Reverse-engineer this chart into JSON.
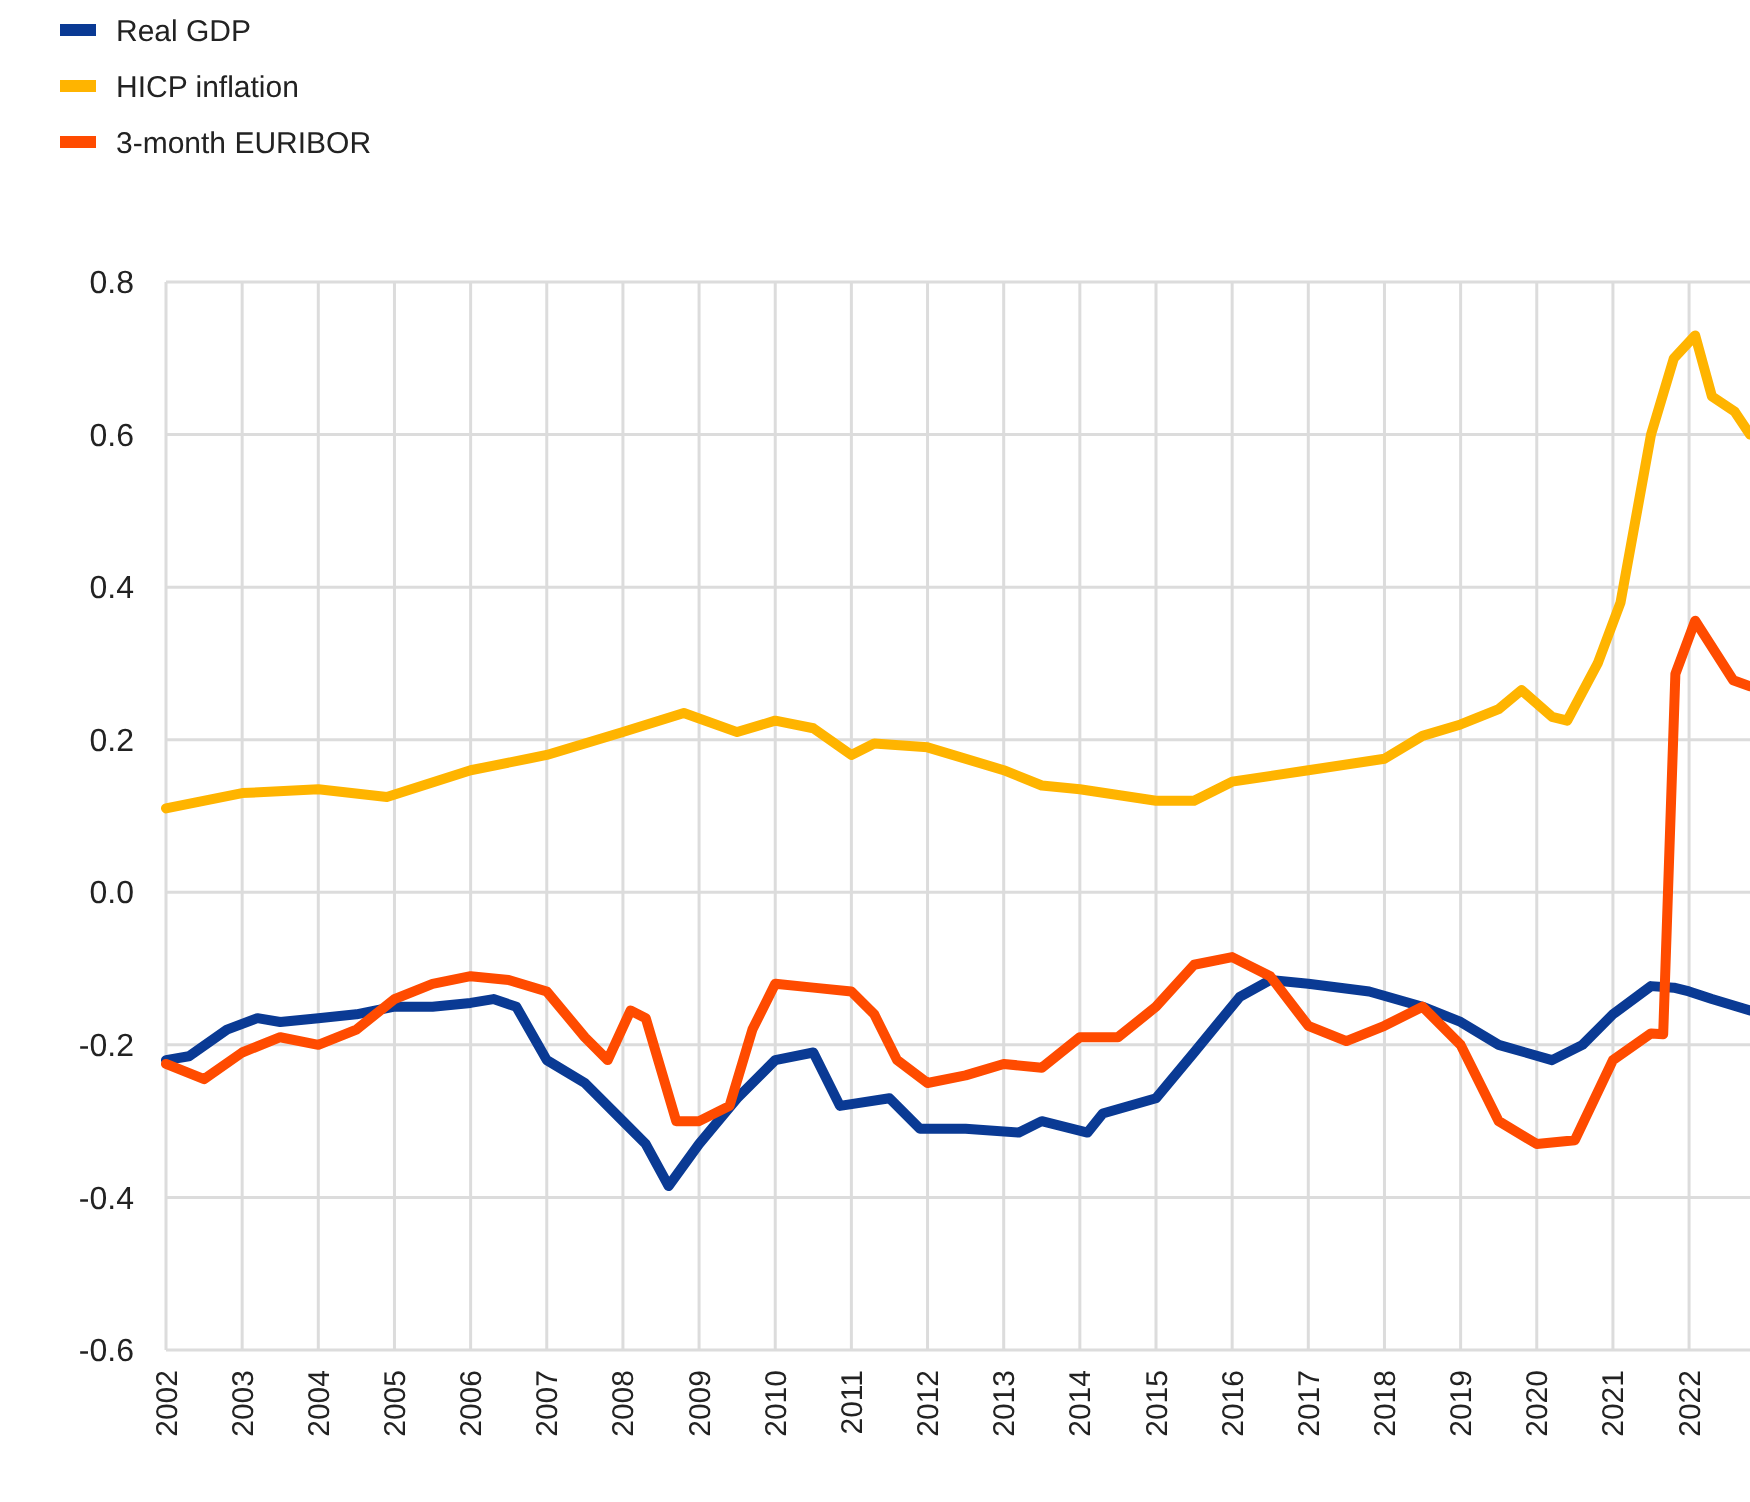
{
  "chart_data": {
    "type": "line",
    "xlim": [
      2002,
      2022.8
    ],
    "xticks": [
      2002,
      2003,
      2004,
      2005,
      2006,
      2007,
      2008,
      2009,
      2010,
      2011,
      2012,
      2013,
      2014,
      2015,
      2016,
      2017,
      2018,
      2019,
      2020,
      2021,
      2022
    ],
    "ylim": [
      -0.6,
      0.8
    ],
    "yticks": [
      {
        "value": 0.8,
        "label": "0.8"
      },
      {
        "value": 0.6,
        "label": "0.6"
      },
      {
        "value": 0.4,
        "label": "0.4"
      },
      {
        "value": 0.2,
        "label": "0.2"
      },
      {
        "value": 0,
        "label": "0.0"
      },
      {
        "value": -0.2,
        "label": "-0.2"
      },
      {
        "value": -0.4,
        "label": "-0.4"
      },
      {
        "value": -0.6,
        "label": "-0.6"
      }
    ],
    "grid": true,
    "legend": "top left",
    "line_style": "solid",
    "series": [
      {
        "name": "Real GDP",
        "color": "#0a3a94",
        "x": [
          2002,
          2002.3,
          2002.8,
          2003.2,
          2003.5,
          2004,
          2004.5,
          2005,
          2005.5,
          2006,
          2006.3,
          2006.6,
          2007,
          2007.5,
          2008,
          2008.3,
          2008.6,
          2009,
          2009.5,
          2010,
          2010.5,
          2010.85,
          2011.5,
          2011.9,
          2012.5,
          2013.2,
          2013.5,
          2014.1,
          2014.3,
          2015,
          2015.5,
          2016.1,
          2016.5,
          2017,
          2017.8,
          2018.5,
          2019,
          2019.5,
          2020.2,
          2020.6,
          2021,
          2021.5,
          2021.8,
          2022,
          2022.3,
          2022.8
        ],
        "values": [
          -0.22,
          -0.215,
          -0.18,
          -0.165,
          -0.17,
          -0.165,
          -0.16,
          -0.15,
          -0.15,
          -0.145,
          -0.14,
          -0.15,
          -0.22,
          -0.25,
          -0.3,
          -0.33,
          -0.385,
          -0.33,
          -0.27,
          -0.22,
          -0.21,
          -0.28,
          -0.27,
          -0.31,
          -0.31,
          -0.315,
          -0.3,
          -0.315,
          -0.29,
          -0.27,
          -0.21,
          -0.137,
          -0.115,
          -0.12,
          -0.13,
          -0.15,
          -0.17,
          -0.2,
          -0.22,
          -0.2,
          -0.16,
          -0.123,
          -0.125,
          -0.13,
          -0.14,
          -0.155
        ]
      },
      {
        "name": "HICP inflation",
        "color": "#ffb400",
        "x": [
          2002,
          2003,
          2004,
          2004.9,
          2006,
          2007,
          2008,
          2008.8,
          2009.5,
          2010,
          2010.5,
          2011,
          2011.3,
          2012,
          2013,
          2013.5,
          2014,
          2015,
          2015.5,
          2016,
          2017,
          2018,
          2018.5,
          2019,
          2019.5,
          2019.8,
          2020.2,
          2020.4,
          2020.8,
          2021.1,
          2021.5,
          2021.8,
          2022.08,
          2022.3,
          2022.6,
          2022.8
        ],
        "values": [
          0.11,
          0.13,
          0.135,
          0.125,
          0.16,
          0.18,
          0.21,
          0.235,
          0.21,
          0.225,
          0.215,
          0.18,
          0.195,
          0.19,
          0.16,
          0.14,
          0.135,
          0.12,
          0.12,
          0.145,
          0.16,
          0.175,
          0.205,
          0.22,
          0.24,
          0.265,
          0.23,
          0.225,
          0.3,
          0.38,
          0.6,
          0.7,
          0.73,
          0.65,
          0.63,
          0.6
        ]
      },
      {
        "name": "3-month EURIBOR",
        "color": "#ff4b00",
        "x": [
          2002,
          2002.5,
          2003,
          2003.5,
          2004,
          2004.5,
          2005,
          2005.5,
          2006,
          2006.5,
          2007,
          2007.5,
          2007.8,
          2008.1,
          2008.3,
          2008.7,
          2009,
          2009.4,
          2009.7,
          2010,
          2010.5,
          2011,
          2011.3,
          2011.6,
          2012,
          2012.5,
          2013,
          2013.5,
          2014,
          2014.5,
          2015,
          2015.5,
          2016,
          2016.5,
          2017,
          2017.5,
          2018,
          2018.5,
          2019,
          2019.5,
          2020,
          2020.5,
          2021,
          2021.5,
          2021.66,
          2021.82,
          2022.08,
          2022.58,
          2022.8
        ],
        "values": [
          -0.225,
          -0.245,
          -0.21,
          -0.19,
          -0.2,
          -0.18,
          -0.14,
          -0.12,
          -0.11,
          -0.115,
          -0.13,
          -0.19,
          -0.22,
          -0.155,
          -0.165,
          -0.3,
          -0.3,
          -0.28,
          -0.18,
          -0.12,
          -0.125,
          -0.13,
          -0.16,
          -0.22,
          -0.25,
          -0.24,
          -0.225,
          -0.23,
          -0.19,
          -0.19,
          -0.15,
          -0.095,
          -0.085,
          -0.11,
          -0.175,
          -0.195,
          -0.175,
          -0.15,
          -0.2,
          -0.3,
          -0.33,
          -0.325,
          -0.22,
          -0.185,
          -0.186,
          0.286,
          0.356,
          0.278,
          0.27
        ]
      }
    ]
  }
}
